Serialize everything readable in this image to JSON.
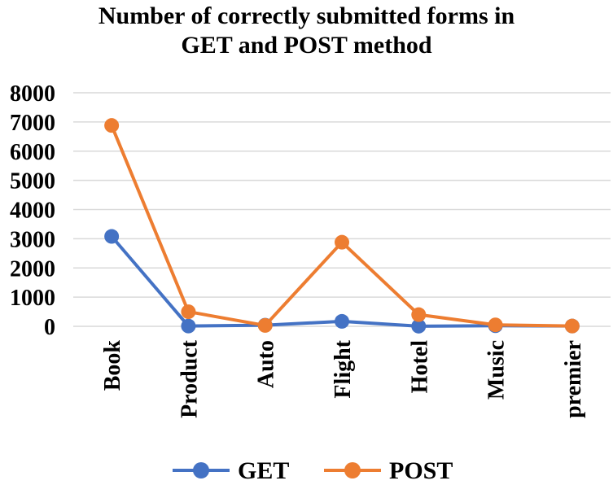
{
  "chart_data": {
    "type": "line",
    "title_lines": [
      "Number of correctly submitted forms in",
      "GET and POST method"
    ],
    "categories": [
      "Book",
      "Product",
      "Auto",
      "Flight",
      "Hotel",
      "Music",
      "premier"
    ],
    "series": [
      {
        "name": "GET",
        "color": "#4472C4",
        "values": [
          3080,
          10,
          40,
          170,
          5,
          20,
          10
        ]
      },
      {
        "name": "POST",
        "color": "#ED7D31",
        "values": [
          6880,
          500,
          30,
          2880,
          400,
          50,
          10
        ]
      }
    ],
    "yticks": [
      0,
      1000,
      2000,
      3000,
      4000,
      5000,
      6000,
      7000,
      8000
    ],
    "ylim": [
      0,
      8000
    ],
    "grid": true,
    "legend_position": "bottom"
  }
}
